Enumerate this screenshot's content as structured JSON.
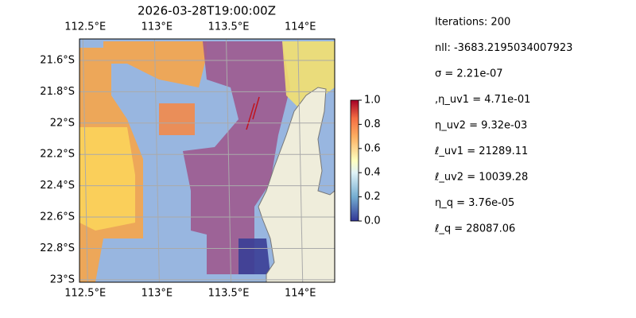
{
  "title": "2026-03-28T19:00:00Z",
  "map": {
    "lonlim": [
      112.46,
      114.24
    ],
    "latlim": [
      -23.016,
      -21.463
    ],
    "lon_ticks": [
      {
        "value": 112.5,
        "label": "112.5°E"
      },
      {
        "value": 113,
        "label": "113°E"
      },
      {
        "value": 113.5,
        "label": "113.5°E"
      },
      {
        "value": 114,
        "label": "114°E"
      }
    ],
    "lat_ticks": [
      {
        "value": -21.6,
        "label": "21.6°S"
      },
      {
        "value": -21.8,
        "label": "21.8°S"
      },
      {
        "value": -22,
        "label": "22°S"
      },
      {
        "value": -22.2,
        "label": "22.2°S"
      },
      {
        "value": -22.4,
        "label": "22.4°S"
      },
      {
        "value": -22.6,
        "label": "22.6°S"
      },
      {
        "value": -22.8,
        "label": "22.8°S"
      },
      {
        "value": -23,
        "label": "23°S"
      }
    ],
    "grid": true
  },
  "colorbar": {
    "lim": [
      0,
      1
    ],
    "ticks": [
      {
        "value": 0,
        "label": "0.0"
      },
      0.2,
      0.4,
      0.6,
      0.8,
      {
        "value": 1,
        "label": "1.0"
      }
    ]
  },
  "annotations": [
    "Iterations: 200",
    "nll: -3683.2195034007923",
    "σ = 2.21e-07",
    ",η_uv1 = 4.71e-01",
    "η_uv2 = 9.32e-03",
    "ℓ_uv1 = 21289.11",
    "ℓ_uv2 = 10039.28",
    "η_q = 3.76e-05",
    "ℓ_q = 28087.06"
  ]
}
